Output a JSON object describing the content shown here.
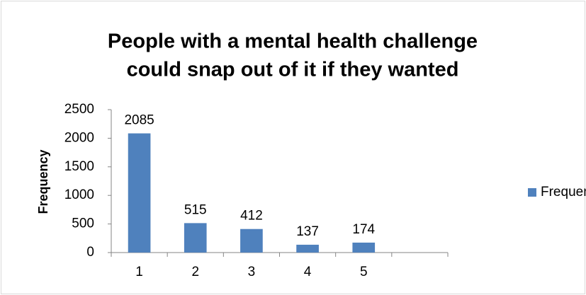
{
  "chart_data": {
    "type": "bar",
    "title": [
      "People with a mental health challenge",
      "could snap out of it if they wanted"
    ],
    "y_label": "Frequency",
    "categories": [
      1,
      2,
      3,
      4,
      5,
      null
    ],
    "series": [
      {
        "name": "Frequency",
        "color": "#4f81bd",
        "values": [
          2085,
          515,
          412,
          137,
          174,
          null
        ]
      }
    ],
    "ylim": [
      0,
      2500
    ],
    "yticks": [
      0,
      500,
      1000,
      1500,
      2000,
      2500
    ],
    "grid": false,
    "legend": "right"
  }
}
